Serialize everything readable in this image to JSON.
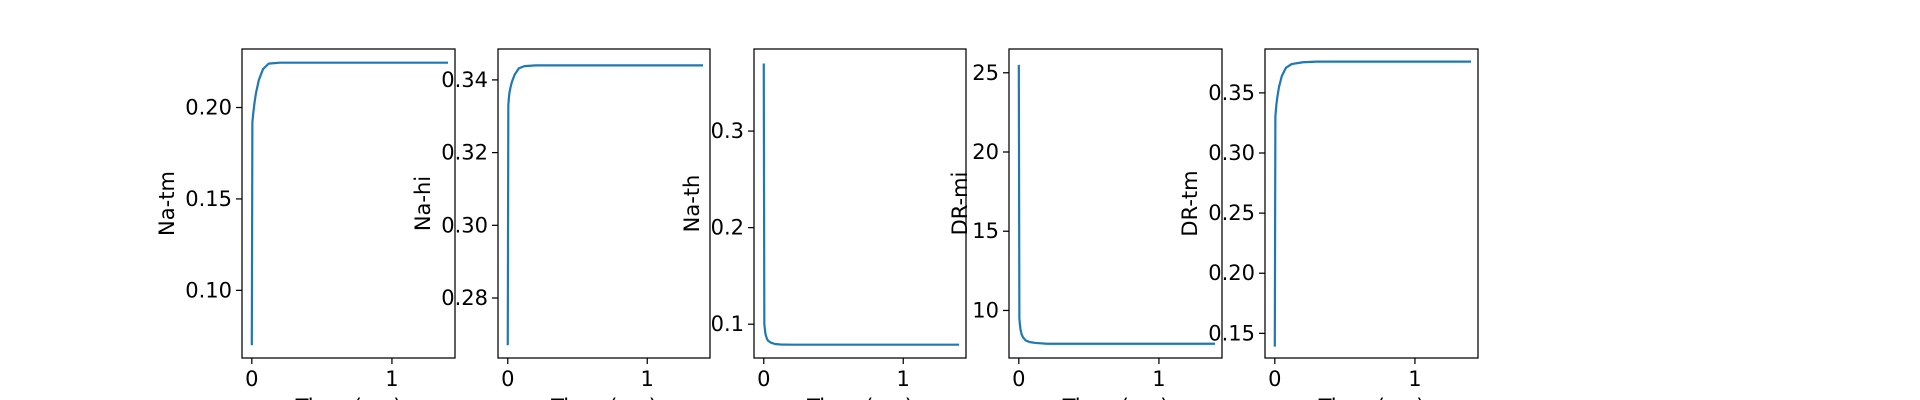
{
  "chart_data": [
    {
      "type": "line",
      "xlabel": "Time (ms)",
      "ylabel": "Na-tm",
      "xlim": [
        -0.07,
        1.45
      ],
      "ylim": [
        0.063,
        0.232
      ],
      "xticks": [
        0,
        1
      ],
      "yticks": [
        0.1,
        0.15,
        0.2
      ],
      "ytick_labels": [
        "0.10",
        "0.15",
        "0.20"
      ],
      "series_color": "#1f77b4",
      "x": [
        0,
        0.004,
        0.008,
        0.012,
        0.02,
        0.03,
        0.05,
        0.08,
        0.12,
        0.2,
        0.3,
        0.6,
        1.0,
        1.4
      ],
      "y": [
        0.07,
        0.192,
        0.195,
        0.198,
        0.203,
        0.208,
        0.215,
        0.221,
        0.224,
        0.2245,
        0.2245,
        0.2245,
        0.2245,
        0.2245
      ]
    },
    {
      "type": "line",
      "xlabel": "Time (ms)",
      "ylabel": "Na-hi",
      "xlim": [
        -0.07,
        1.45
      ],
      "ylim": [
        0.2635,
        0.3485
      ],
      "xticks": [
        0,
        1
      ],
      "yticks": [
        0.28,
        0.3,
        0.32,
        0.34
      ],
      "ytick_labels": [
        "0.28",
        "0.30",
        "0.32",
        "0.34"
      ],
      "series_color": "#1f77b4",
      "x": [
        0,
        0.004,
        0.008,
        0.012,
        0.02,
        0.03,
        0.05,
        0.08,
        0.12,
        0.2,
        0.3,
        0.6,
        1.0,
        1.4
      ],
      "y": [
        0.267,
        0.333,
        0.335,
        0.3365,
        0.338,
        0.3395,
        0.3415,
        0.3432,
        0.3438,
        0.344,
        0.344,
        0.344,
        0.344,
        0.344
      ]
    },
    {
      "type": "line",
      "xlabel": "Time (ms)",
      "ylabel": "Na-th",
      "xlim": [
        -0.07,
        1.45
      ],
      "ylim": [
        0.065,
        0.385
      ],
      "xticks": [
        0,
        1
      ],
      "yticks": [
        0.1,
        0.2,
        0.3
      ],
      "ytick_labels": [
        "0.1",
        "0.2",
        "0.3"
      ],
      "series_color": "#1f77b4",
      "x": [
        0,
        0.004,
        0.008,
        0.012,
        0.02,
        0.03,
        0.05,
        0.08,
        0.12,
        0.2,
        0.3,
        0.6,
        1.0,
        1.4
      ],
      "y": [
        0.37,
        0.1,
        0.095,
        0.09,
        0.086,
        0.083,
        0.081,
        0.0795,
        0.079,
        0.0788,
        0.0788,
        0.0788,
        0.0788,
        0.0788
      ]
    },
    {
      "type": "line",
      "xlabel": "Time (ms)",
      "ylabel": "DR-mi",
      "xlim": [
        -0.07,
        1.45
      ],
      "ylim": [
        7.0,
        26.5
      ],
      "xticks": [
        0,
        1
      ],
      "yticks": [
        10,
        15,
        20,
        25
      ],
      "ytick_labels": [
        "10",
        "15",
        "20",
        "25"
      ],
      "series_color": "#1f77b4",
      "x": [
        0,
        0.004,
        0.008,
        0.012,
        0.02,
        0.03,
        0.05,
        0.08,
        0.12,
        0.2,
        0.3,
        0.6,
        1.0,
        1.4
      ],
      "y": [
        25.5,
        9.5,
        9.1,
        8.8,
        8.5,
        8.3,
        8.1,
        8.0,
        7.95,
        7.9,
        7.9,
        7.9,
        7.9,
        7.9
      ]
    },
    {
      "type": "line",
      "xlabel": "Time (ms)",
      "ylabel": "DR-tm",
      "xlim": [
        -0.07,
        1.45
      ],
      "ylim": [
        0.1295,
        0.3865
      ],
      "xticks": [
        0,
        1
      ],
      "yticks": [
        0.15,
        0.2,
        0.25,
        0.3,
        0.35
      ],
      "ytick_labels": [
        "0.15",
        "0.20",
        "0.25",
        "0.30",
        "0.35"
      ],
      "series_color": "#1f77b4",
      "x": [
        0,
        0.004,
        0.008,
        0.012,
        0.02,
        0.03,
        0.05,
        0.08,
        0.12,
        0.2,
        0.3,
        0.6,
        1.0,
        1.4
      ],
      "y": [
        0.139,
        0.33,
        0.336,
        0.341,
        0.348,
        0.355,
        0.364,
        0.371,
        0.374,
        0.3755,
        0.376,
        0.376,
        0.376,
        0.376
      ]
    }
  ]
}
